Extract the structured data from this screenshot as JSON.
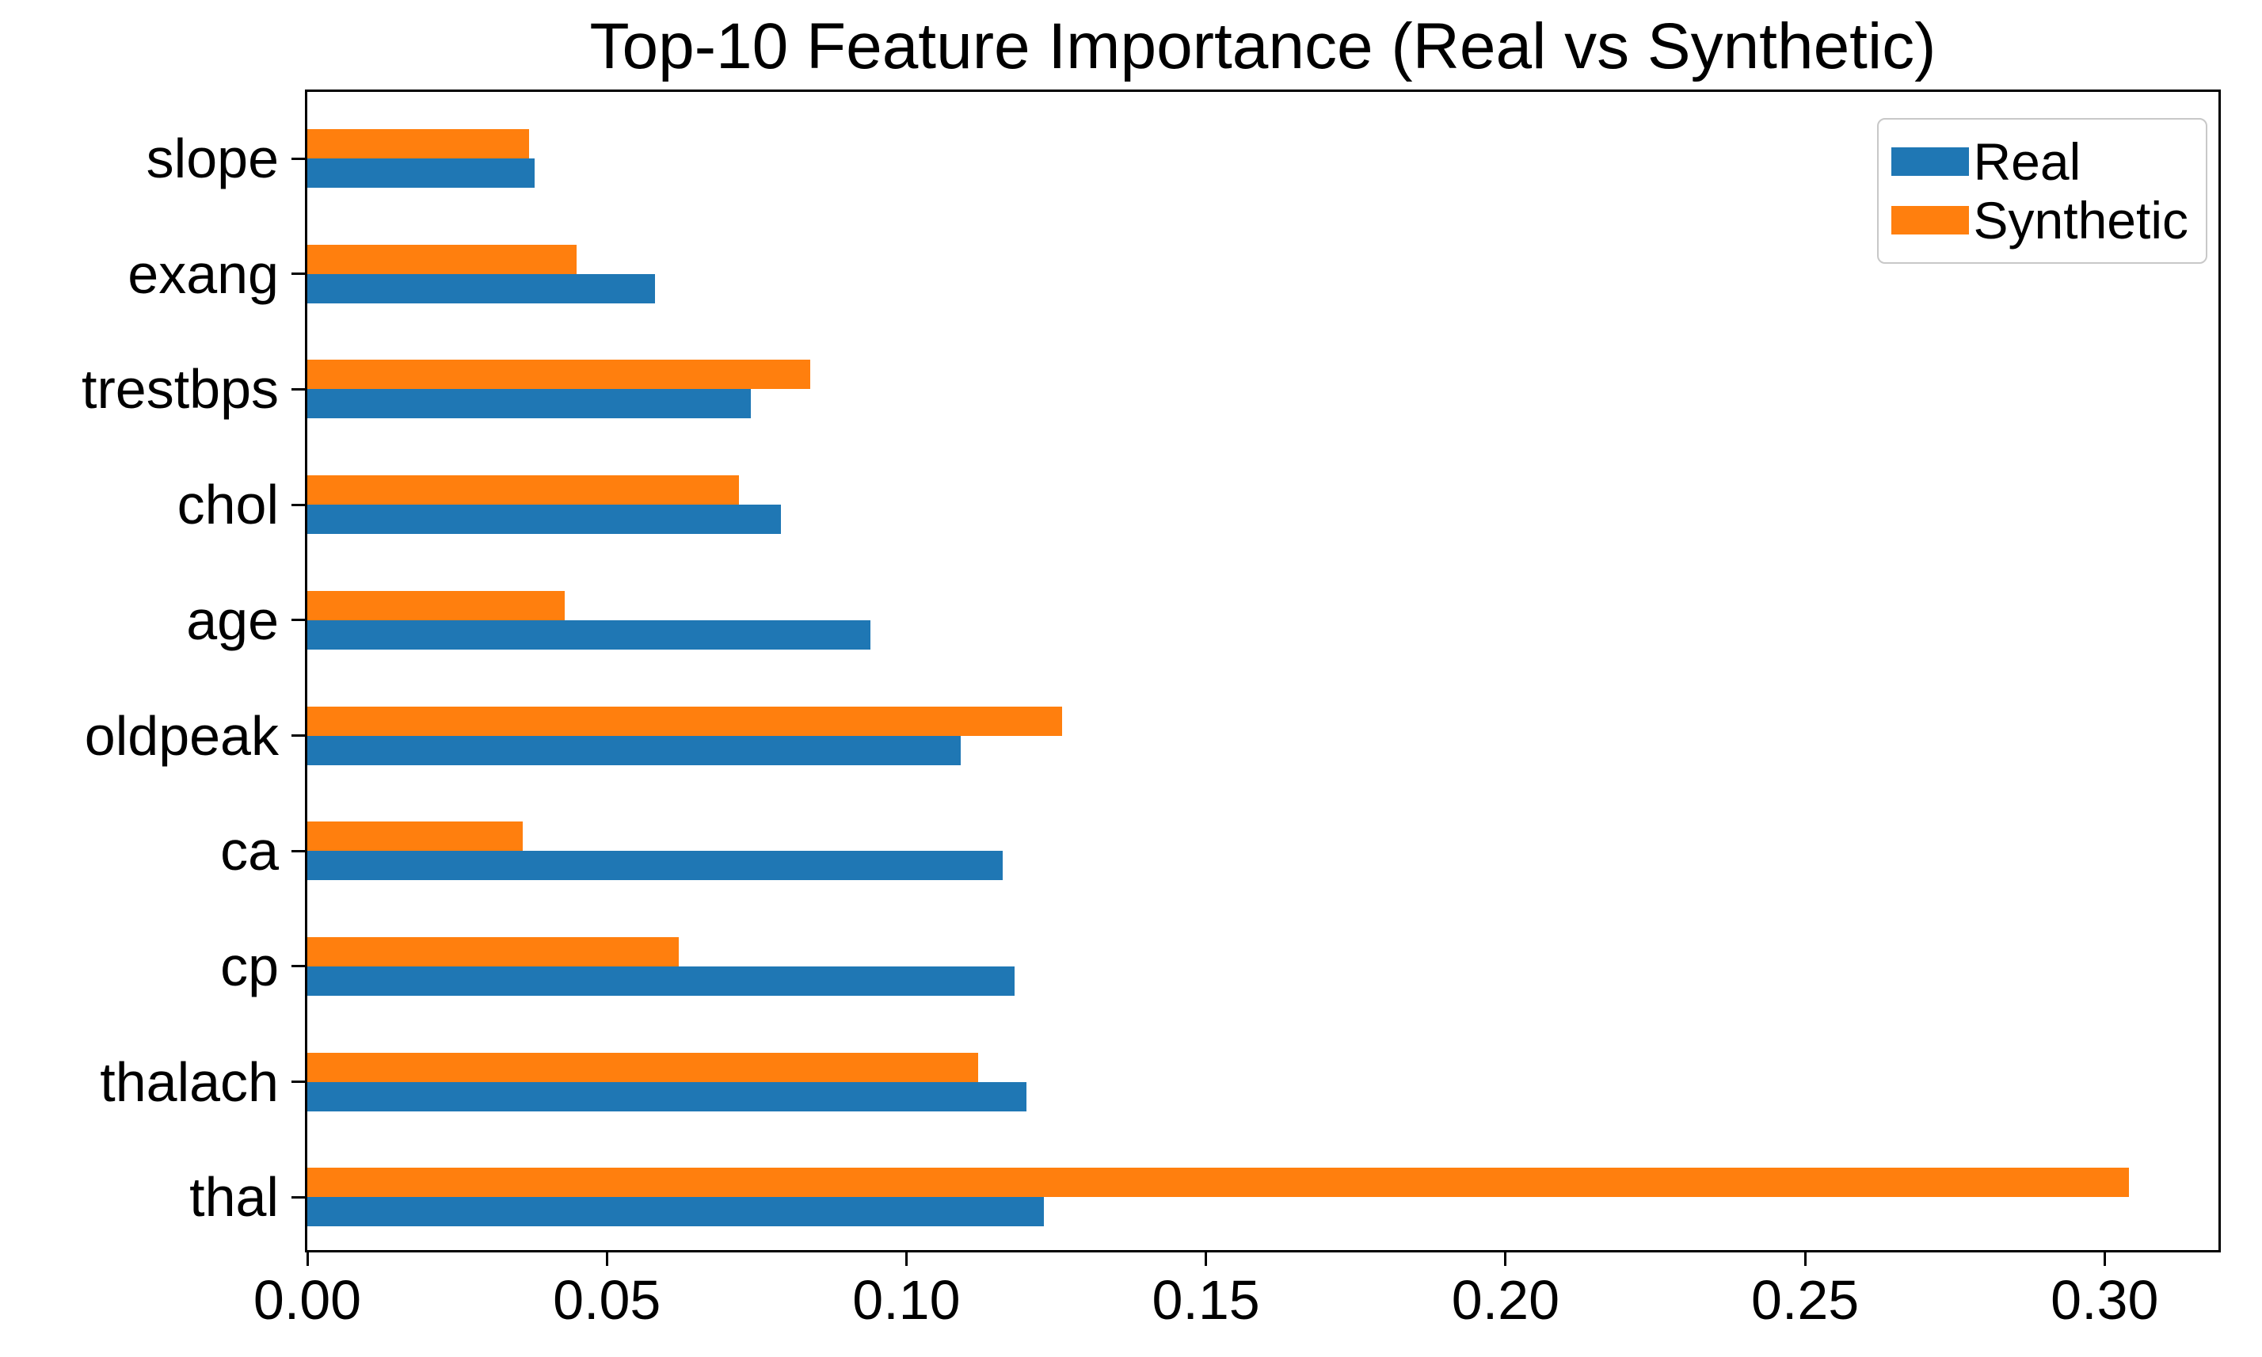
{
  "title": "Top-10 Feature Importance (Real vs Synthetic)",
  "colors": {
    "real": "#1f77b4",
    "synthetic": "#ff7f0e",
    "axis": "#000000",
    "background": "#ffffff",
    "legend_border": "#c8c8c8"
  },
  "legend": {
    "position": "upper right",
    "entries": [
      "Real",
      "Synthetic"
    ]
  },
  "chart_data": {
    "type": "bar",
    "orientation": "horizontal",
    "title": "Top-10 Feature Importance (Real vs Synthetic)",
    "xlabel": "",
    "ylabel": "",
    "categories_top_to_bottom": [
      "slope",
      "exang",
      "trestbps",
      "chol",
      "age",
      "oldpeak",
      "ca",
      "cp",
      "thalach",
      "thal"
    ],
    "series": [
      {
        "name": "Real",
        "color": "#1f77b4",
        "values": [
          0.038,
          0.058,
          0.074,
          0.079,
          0.094,
          0.109,
          0.116,
          0.118,
          0.12,
          0.123
        ]
      },
      {
        "name": "Synthetic",
        "color": "#ff7f0e",
        "values": [
          0.037,
          0.045,
          0.084,
          0.072,
          0.043,
          0.126,
          0.036,
          0.062,
          0.112,
          0.304
        ]
      }
    ],
    "group_order_note": "For each category the Synthetic (orange) bar is drawn above the Real (blue) bar",
    "xlim": [
      0,
      0.319
    ],
    "xticks": [
      "0.00",
      "0.05",
      "0.10",
      "0.15",
      "0.20",
      "0.25",
      "0.30"
    ],
    "xtick_values": [
      0.0,
      0.05,
      0.1,
      0.15,
      0.2,
      0.25,
      0.3
    ],
    "grid": false,
    "legend_position": "upper right"
  }
}
